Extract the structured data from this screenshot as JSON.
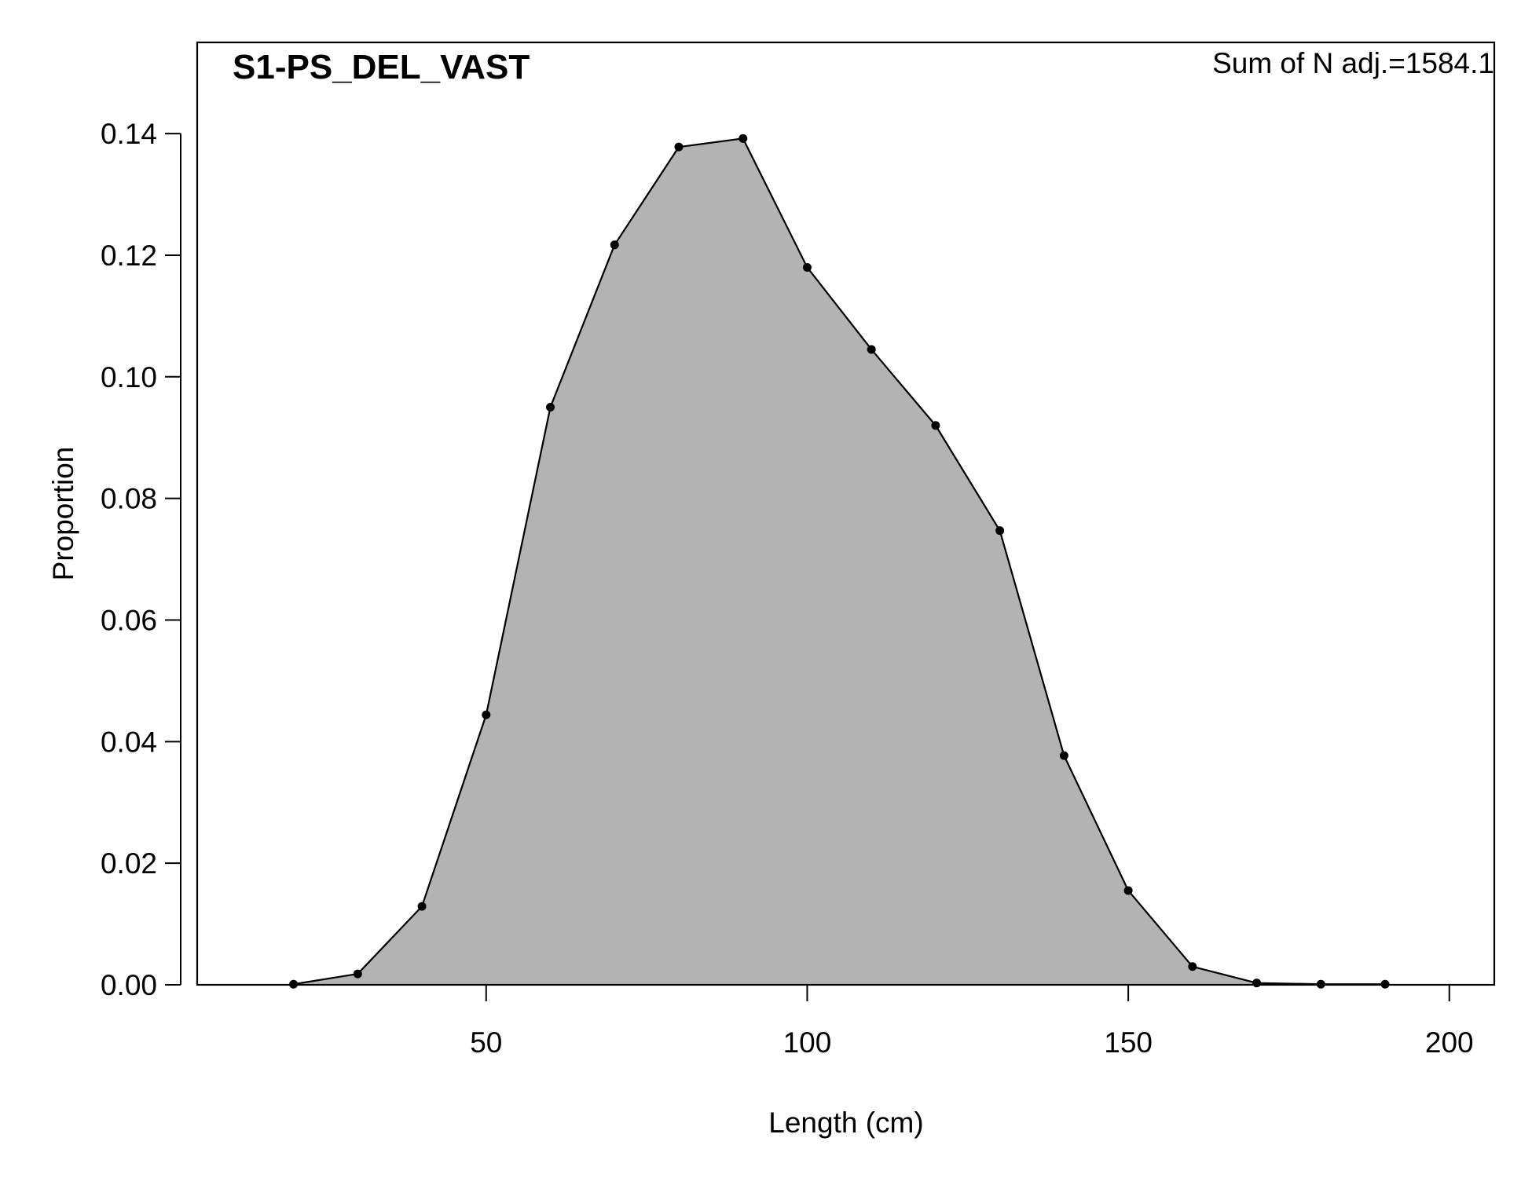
{
  "chart_data": {
    "type": "area",
    "title": "S1-PS_DEL_VAST",
    "annotation": "Sum of N adj.=1584.1",
    "xlabel": "Length (cm)",
    "ylabel": "Proportion",
    "xlim": [
      5,
      207
    ],
    "ylim": [
      0,
      0.155
    ],
    "xticks": [
      50,
      100,
      150,
      200
    ],
    "xtick_labels": [
      "50",
      "100",
      "150",
      "200"
    ],
    "yticks": [
      0,
      0.02,
      0.04,
      0.06,
      0.08,
      0.1,
      0.12,
      0.14
    ],
    "ytick_labels": [
      "0.00",
      "0.02",
      "0.04",
      "0.06",
      "0.08",
      "0.10",
      "0.12",
      "0.14"
    ],
    "grid": false,
    "fill_color": "#b3b3b3",
    "line_color": "#000000",
    "series": [
      {
        "x": [
          20,
          30,
          40,
          50,
          60,
          70,
          80,
          90,
          100,
          110,
          120,
          130,
          140,
          150,
          160,
          170,
          180,
          190
        ],
        "y": [
          0.0001,
          0.0018,
          0.0129,
          0.0444,
          0.095,
          0.1217,
          0.1378,
          0.1392,
          0.118,
          0.1045,
          0.092,
          0.0747,
          0.0377,
          0.0155,
          0.003,
          0.0003,
          0.0001,
          0.0001
        ]
      }
    ]
  }
}
